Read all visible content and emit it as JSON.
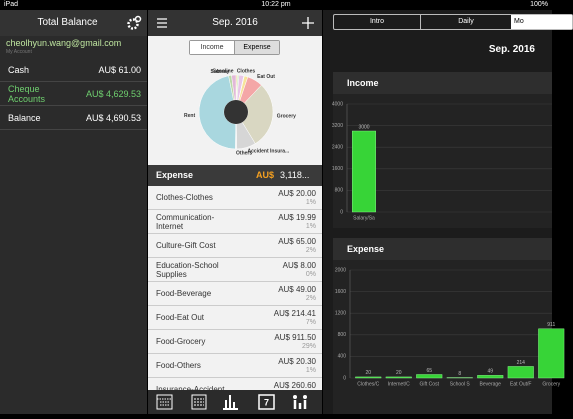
{
  "status_bar": {
    "device": "iPad",
    "time": "10:22 pm",
    "battery": "100%"
  },
  "sidebar": {
    "title": "Total Balance",
    "email": "cheolhyun.wang@gmail.com",
    "subtitle": "My Account",
    "accounts": [
      {
        "name": "Cash",
        "amount": "AU$ 61.00"
      },
      {
        "name": "Cheque Accounts",
        "amount": "AU$ 4,629.53"
      },
      {
        "name": "Balance",
        "amount": "AU$ 4,690.53"
      }
    ]
  },
  "ledger": {
    "month": "Sep. 2016",
    "toggle": [
      "Income",
      "Expense"
    ],
    "summary": {
      "title": "Expense",
      "currency": "AU$",
      "total": "3,118..."
    },
    "rows": [
      {
        "name": "Clothes-Clothes",
        "amount": "AU$ 20.00",
        "percent": "1%"
      },
      {
        "name": "Communication-Internet",
        "amount": "AU$ 19.99",
        "percent": "1%"
      },
      {
        "name": "Culture-Gift Cost",
        "amount": "AU$ 65.00",
        "percent": "2%"
      },
      {
        "name": "Education-School Supplies",
        "amount": "AU$ 8.00",
        "percent": "0%"
      },
      {
        "name": "Food-Beverage",
        "amount": "AU$ 49.00",
        "percent": "2%"
      },
      {
        "name": "Food-Eat Out",
        "amount": "AU$ 214.41",
        "percent": "7%"
      },
      {
        "name": "Food-Grocery",
        "amount": "AU$ 911.50",
        "percent": "29%"
      },
      {
        "name": "Food-Others",
        "amount": "AU$ 20.30",
        "percent": "1%"
      },
      {
        "name": "Insurance-Accident",
        "amount": "AU$ 260.60",
        "percent": ""
      }
    ]
  },
  "report": {
    "tabs": [
      "Intro",
      "Daily",
      "Mo"
    ],
    "month": "Sep. 2016",
    "sections": [
      "Income",
      "Expense"
    ]
  },
  "chart_data": [
    {
      "type": "pie",
      "categories": [
        "Clothes",
        null,
        null,
        null,
        null,
        "Eat Out",
        "Grocery",
        "Accident Insura...",
        "Others",
        "Rent",
        "Subway",
        "Gasoline"
      ],
      "values": [
        20,
        19.99,
        65,
        8,
        49,
        214.41,
        911.5,
        260.6,
        20.3,
        1450,
        40,
        60
      ],
      "colors": [
        "#f2d9a0",
        "#c9e7b8",
        "#e8c6e8",
        "#b7c9ef",
        "#f7e39a",
        "#f4a7a7",
        "#d9d7c2",
        "#d6d6d6",
        "#ececec",
        "#a9d7df",
        "#bcd9a8",
        "#e2b8d8"
      ]
    },
    {
      "type": "bar",
      "categories": [
        "Salary/Sa"
      ],
      "values": [
        3000
      ],
      "color": "#37d437",
      "ylim": [
        0,
        4000
      ],
      "yticks": [
        0,
        800,
        1600,
        2400,
        3200,
        4000
      ],
      "grid": true
    },
    {
      "type": "bar",
      "categories": [
        "Clothes/C",
        "Internet/C",
        "Gift Cost",
        "School S",
        "Beverage",
        "Eat Out/F",
        "Grocery"
      ],
      "values": [
        20,
        20,
        65,
        8,
        49,
        214,
        911
      ],
      "color": "#37d437",
      "ylim": [
        0,
        2000
      ],
      "yticks": [
        0,
        400,
        800,
        1200,
        1600,
        2000
      ],
      "grid": true
    }
  ]
}
